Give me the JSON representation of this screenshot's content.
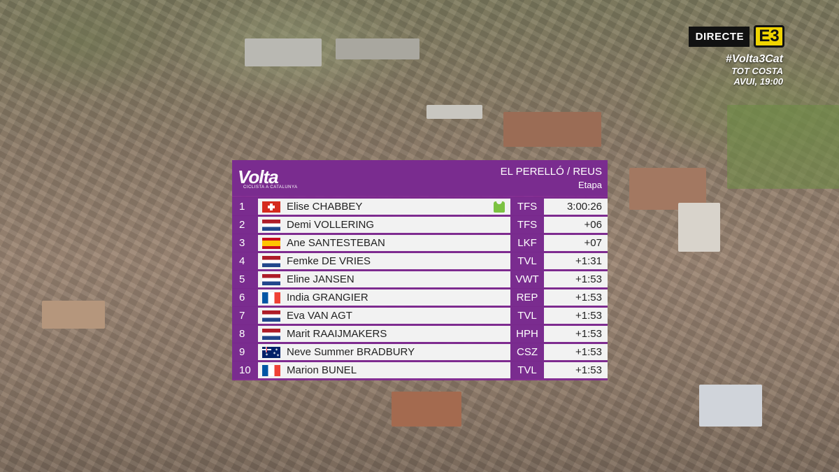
{
  "broadcast": {
    "live_label": "DIRECTE",
    "channel_logo": "E3",
    "hashtag": "#Volta3Cat",
    "program": "TOT COSTA",
    "schedule": "AVUI, 19:00"
  },
  "panel": {
    "brand": "Volta",
    "brand_sub": "CICLISTA A CATALUNYA",
    "route": "EL PERELLÓ / REUS",
    "classification": "Etapa",
    "accent_color": "#7a2c8f",
    "rows": [
      {
        "position": "1",
        "flag": "ch",
        "rider": "Elise CHABBEY",
        "team": "TFS",
        "time": "3:00:26",
        "jersey": "green-jersey-icon"
      },
      {
        "position": "2",
        "flag": "nl",
        "rider": "Demi VOLLERING",
        "team": "TFS",
        "time": "+06"
      },
      {
        "position": "3",
        "flag": "es",
        "rider": "Ane SANTESTEBAN",
        "team": "LKF",
        "time": "+07"
      },
      {
        "position": "4",
        "flag": "nl",
        "rider": "Femke DE VRIES",
        "team": "TVL",
        "time": "+1:31"
      },
      {
        "position": "5",
        "flag": "nl",
        "rider": "Eline JANSEN",
        "team": "VWT",
        "time": "+1:53"
      },
      {
        "position": "6",
        "flag": "fr",
        "rider": "India GRANGIER",
        "team": "REP",
        "time": "+1:53"
      },
      {
        "position": "7",
        "flag": "nl",
        "rider": "Eva VAN AGT",
        "team": "TVL",
        "time": "+1:53"
      },
      {
        "position": "8",
        "flag": "nl",
        "rider": "Marit RAAIJMAKERS",
        "team": "HPH",
        "time": "+1:53"
      },
      {
        "position": "9",
        "flag": "au",
        "rider": "Neve Summer BRADBURY",
        "team": "CSZ",
        "time": "+1:53"
      },
      {
        "position": "10",
        "flag": "fr",
        "rider": "Marion BUNEL",
        "team": "TVL",
        "time": "+1:53"
      }
    ]
  }
}
